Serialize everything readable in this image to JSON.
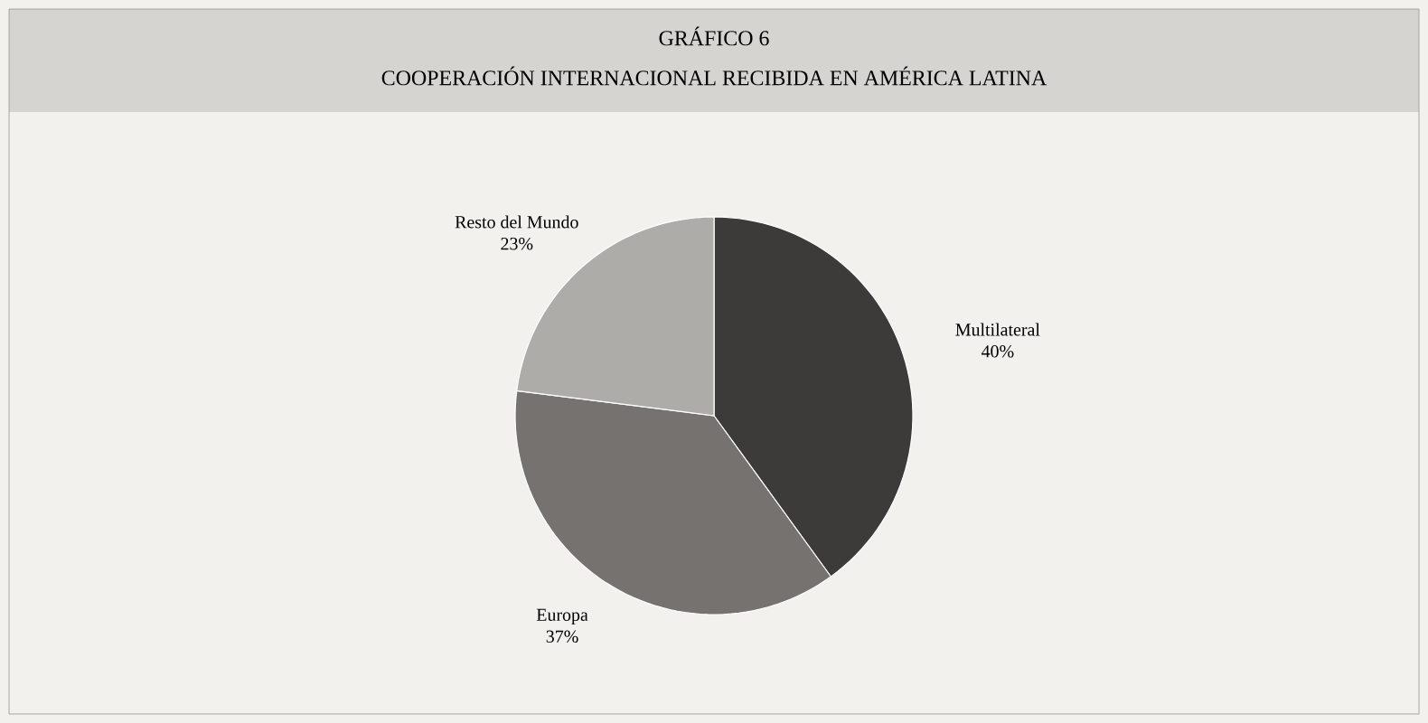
{
  "chart_data": {
    "type": "pie",
    "title": "GRÁFICO 6",
    "subtitle": "COOPERACIÓN INTERNACIONAL RECIBIDA EN AMÉRICA LATINA",
    "categories": [
      "Multilateral",
      "Europa",
      "Resto del Mundo"
    ],
    "values": [
      40,
      37,
      23
    ],
    "value_labels": [
      "40%",
      "37%",
      "23%"
    ],
    "colors": [
      "#3d3b39",
      "#75726f",
      "#aeaca9"
    ]
  }
}
